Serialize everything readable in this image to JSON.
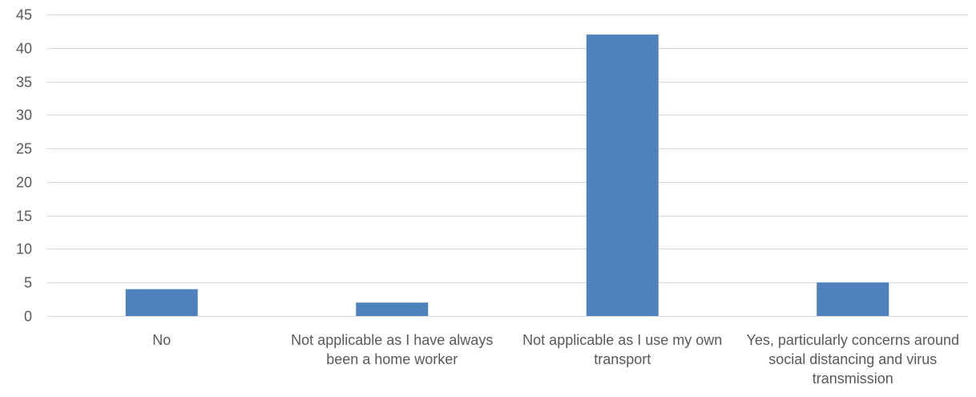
{
  "chart_data": {
    "type": "bar",
    "categories": [
      "No",
      "Not applicable as I have always been a home worker",
      "Not applicable as I use my own transport",
      "Yes, particularly concerns around social distancing and virus transmission"
    ],
    "values": [
      4,
      2,
      42,
      5
    ],
    "title": "",
    "xlabel": "",
    "ylabel": "",
    "ylim": [
      0,
      45
    ],
    "yticks": [
      0,
      5,
      10,
      15,
      20,
      25,
      30,
      35,
      40,
      45
    ],
    "grid": true,
    "legend": "none",
    "bar_color": "#4f81bd",
    "grid_color": "#d9d9d9",
    "label_color": "#595959"
  }
}
